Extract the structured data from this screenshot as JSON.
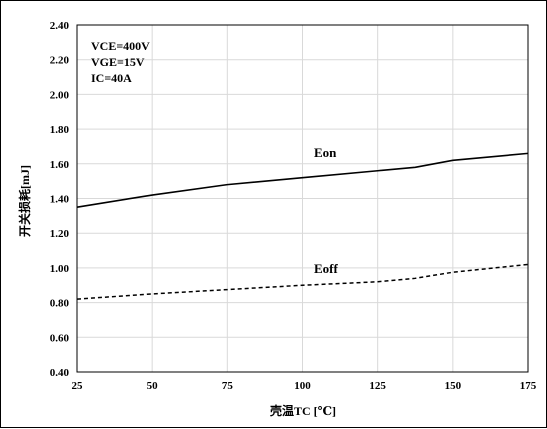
{
  "chart_data": {
    "type": "line",
    "xlabel": "壳温TC [℃]",
    "ylabel": "开关损耗[mJ]",
    "xlim": [
      25,
      175
    ],
    "ylim": [
      0.4,
      2.4
    ],
    "xticks": [
      "25",
      "50",
      "75",
      "100",
      "125",
      "150",
      "175"
    ],
    "yticks": [
      "0.40",
      "0.60",
      "0.80",
      "1.00",
      "1.20",
      "1.40",
      "1.60",
      "1.80",
      "2.00",
      "2.20",
      "2.40"
    ],
    "x_gridlines": true,
    "y_gridlines": true,
    "conditions": [
      "VCE=400V",
      "VGE=15V",
      "IC=40A"
    ],
    "x": [
      25,
      50,
      75,
      100,
      125,
      137.5,
      150,
      175
    ],
    "series": [
      {
        "name": "Eon",
        "style": "solid",
        "values": [
          1.35,
          1.42,
          1.48,
          1.52,
          1.56,
          1.58,
          1.62,
          1.66
        ]
      },
      {
        "name": "Eoff",
        "style": "dashed",
        "values": [
          0.82,
          0.85,
          0.875,
          0.9,
          0.92,
          0.94,
          0.975,
          1.02
        ]
      }
    ]
  }
}
